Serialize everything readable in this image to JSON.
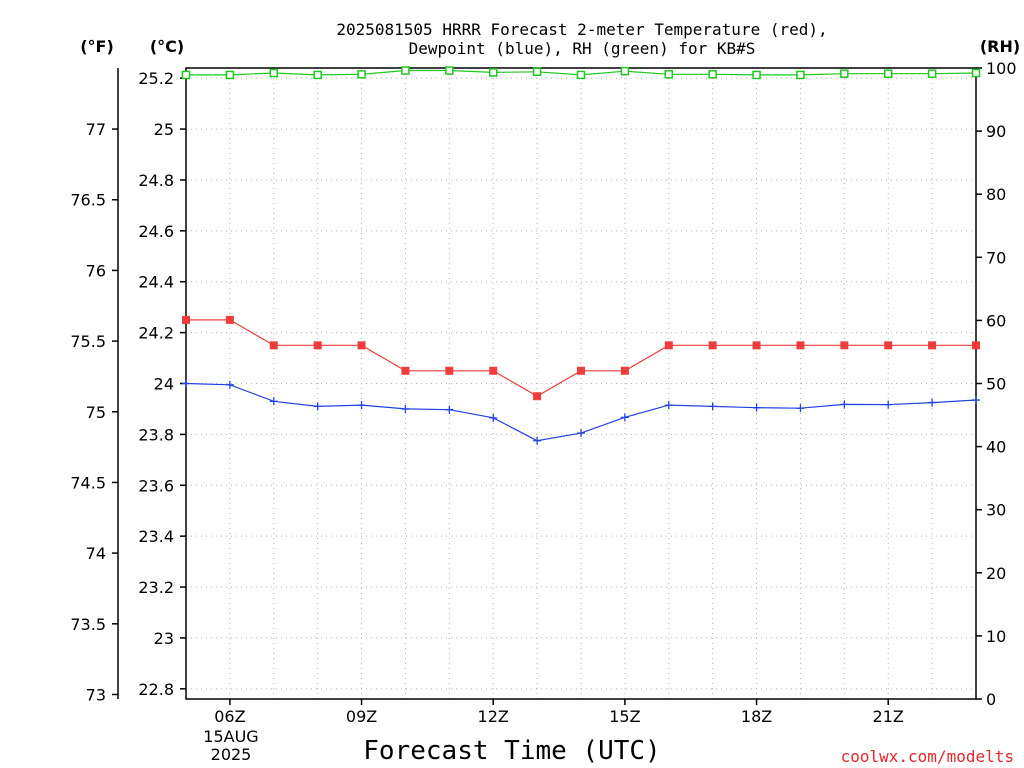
{
  "chart_data": {
    "type": "line",
    "title": [
      "2025081505 HRRR Forecast 2-meter Temperature (red),",
      "Dewpoint (blue), RH (green) for KB#S"
    ],
    "xlabel": "Forecast Time (UTC)",
    "credit": "coolwx.com/modelts",
    "axis_units": {
      "fahrenheit": "(°F)",
      "celsius": "(°C)",
      "rh": "(RH)"
    },
    "x_hours": [
      5,
      6,
      7,
      8,
      9,
      10,
      11,
      12,
      13,
      14,
      15,
      16,
      17,
      18,
      19,
      20,
      21,
      22,
      23
    ],
    "xlim": [
      5,
      23
    ],
    "x_ticks": [
      {
        "hour": 6,
        "label": "06Z"
      },
      {
        "hour": 9,
        "label": "09Z"
      },
      {
        "hour": 12,
        "label": "12Z"
      },
      {
        "hour": 15,
        "label": "15Z"
      },
      {
        "hour": 18,
        "label": "18Z"
      },
      {
        "hour": 21,
        "label": "21Z"
      }
    ],
    "date_label": [
      "15AUG",
      "2025"
    ],
    "celsius_axis": {
      "ylim": [
        22.76,
        25.24
      ],
      "ticks": [
        22.8,
        23,
        23.2,
        23.4,
        23.6,
        23.8,
        24,
        24.2,
        24.4,
        24.6,
        24.8,
        25,
        25.2
      ],
      "tick_labels": [
        "22.8",
        "23",
        "23.2",
        "23.4",
        "23.6",
        "23.8",
        "24",
        "24.2",
        "24.4",
        "24.6",
        "24.8",
        "25",
        "25.2"
      ]
    },
    "fahrenheit_axis": {
      "ticks": [
        73,
        73.5,
        74,
        74.5,
        75,
        75.5,
        76,
        76.5,
        77
      ],
      "tick_labels": [
        "73",
        "73.5",
        "74",
        "74.5",
        "75",
        "75.5",
        "76",
        "76.5",
        "77"
      ]
    },
    "rh_axis": {
      "ylim": [
        0,
        100
      ],
      "ticks": [
        0,
        10,
        20,
        30,
        40,
        50,
        60,
        70,
        80,
        90,
        100
      ],
      "tick_labels": [
        "0",
        "10",
        "20",
        "30",
        "40",
        "50",
        "60",
        "70",
        "80",
        "90",
        "100"
      ]
    },
    "grid": true,
    "series": [
      {
        "name": "Temperature",
        "color": "#f03c3c",
        "marker": "filled-square",
        "axis": "celsius",
        "values": [
          24.25,
          24.25,
          24.15,
          24.15,
          24.15,
          24.05,
          24.05,
          24.05,
          23.95,
          24.05,
          24.05,
          24.15,
          24.15,
          24.15,
          24.15,
          24.15,
          24.15,
          24.15,
          24.15
        ]
      },
      {
        "name": "Dewpoint",
        "color": "#2342e6",
        "marker": "plus",
        "axis": "celsius",
        "values": [
          24.0,
          23.995,
          23.93,
          23.91,
          23.915,
          23.9,
          23.897,
          23.865,
          23.775,
          23.805,
          23.867,
          23.915,
          23.91,
          23.905,
          23.903,
          23.918,
          23.917,
          23.925,
          23.935
        ]
      },
      {
        "name": "RH",
        "color": "#1ec81e",
        "marker": "open-square",
        "axis": "rh",
        "values": [
          98.9,
          98.9,
          99.2,
          98.9,
          99.0,
          99.6,
          99.6,
          99.3,
          99.4,
          98.9,
          99.5,
          99.0,
          99.0,
          98.9,
          98.9,
          99.1,
          99.1,
          99.1,
          99.2
        ]
      }
    ]
  }
}
